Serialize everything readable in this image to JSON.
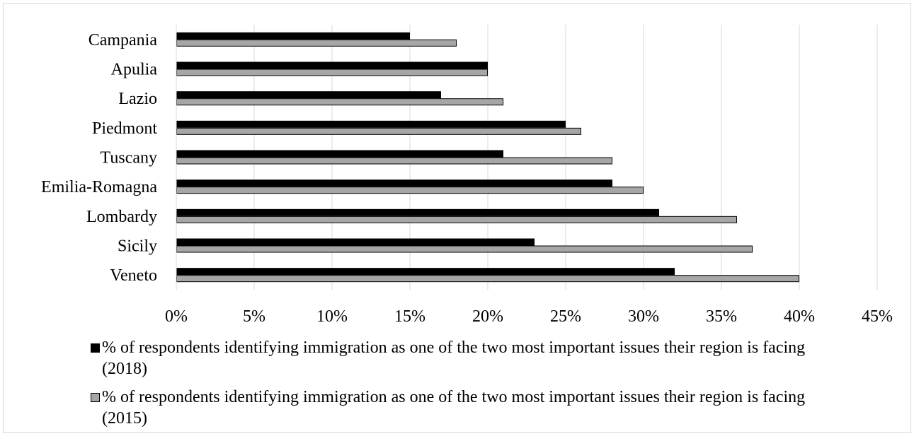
{
  "chart_data": {
    "type": "bar",
    "orientation": "horizontal",
    "categories": [
      "Campania",
      "Apulia",
      "Lazio",
      "Piedmont",
      "Tuscany",
      "Emilia-Romagna",
      "Lombardy",
      "Sicily",
      "Veneto"
    ],
    "series": [
      {
        "name": "% of respondents identifying immigration as one of the two most important issues their region is facing (2018)",
        "color": "#000000",
        "values": [
          15,
          20,
          17,
          25,
          21,
          28,
          31,
          23,
          32
        ]
      },
      {
        "name": "% of respondents identifying immigration as one of the two most important issues their region is facing (2015)",
        "color": "#a6a6a6",
        "values": [
          18,
          20,
          21,
          26,
          28,
          30,
          36,
          37,
          40
        ]
      }
    ],
    "xlim": [
      0,
      45
    ],
    "xticks": [
      "0%",
      "5%",
      "10%",
      "15%",
      "20%",
      "25%",
      "30%",
      "35%",
      "40%",
      "45%"
    ],
    "grid": true,
    "legend_position": "bottom",
    "title": "",
    "xlabel": "",
    "ylabel": ""
  }
}
